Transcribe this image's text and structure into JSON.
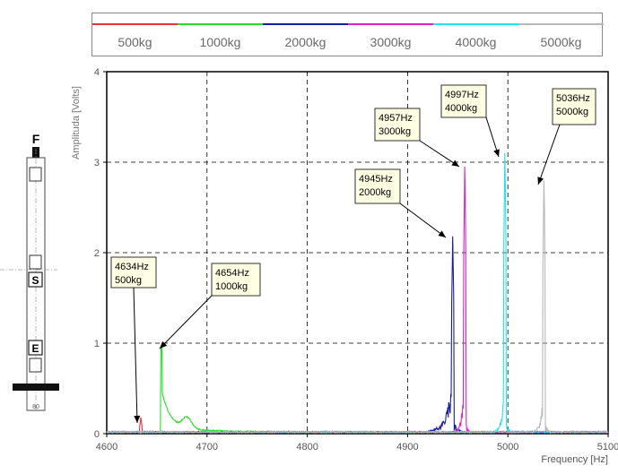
{
  "legend": [
    {
      "label": "500kg",
      "color": "#e8323c"
    },
    {
      "label": "1000kg",
      "color": "#22e022"
    },
    {
      "label": "2000kg",
      "color": "#1a1aa8"
    },
    {
      "label": "3000kg",
      "color": "#e020c8"
    },
    {
      "label": "4000kg",
      "color": "#22e4f0"
    },
    {
      "label": "5000kg",
      "color": "#b8b8b8"
    }
  ],
  "diagram": {
    "force_label": "F",
    "label_s": "S",
    "label_e": "E",
    "dimension": "80"
  },
  "chart_data": {
    "type": "line",
    "xlabel": "Frequency [Hz]",
    "ylabel": "Amplituda [Volts]",
    "xlim": [
      4600,
      5100
    ],
    "ylim": [
      0,
      4
    ],
    "x_ticks": [
      4600,
      4700,
      4800,
      4900,
      5000,
      5100
    ],
    "y_ticks": [
      0,
      1,
      2,
      3,
      4
    ],
    "grid": true,
    "legend_position": "top",
    "series": [
      {
        "name": "500kg",
        "color": "#e8323c",
        "peak_hz": 4634,
        "peak_amplitude": 0.18
      },
      {
        "name": "1000kg",
        "color": "#22e022",
        "peak_hz": 4654,
        "peak_amplitude": 0.95
      },
      {
        "name": "2000kg",
        "color": "#1a1aa8",
        "peak_hz": 4945,
        "peak_amplitude": 2.18
      },
      {
        "name": "3000kg",
        "color": "#e020c8",
        "peak_hz": 4957,
        "peak_amplitude": 2.95
      },
      {
        "name": "4000kg",
        "color": "#22e4f0",
        "peak_hz": 4997,
        "peak_amplitude": 3.1
      },
      {
        "name": "5000kg",
        "color": "#b8b8b8",
        "peak_hz": 5036,
        "peak_amplitude": 2.8
      }
    ],
    "annotations": [
      {
        "line1": "4634Hz",
        "line2": "500kg",
        "x": 4634,
        "y": 0.12
      },
      {
        "line1": "4654Hz",
        "line2": "1000kg",
        "x": 4654,
        "y": 0.93
      },
      {
        "line1": "4945Hz",
        "line2": "2000kg",
        "x": 4945,
        "y": 2.18
      },
      {
        "line1": "4957Hz",
        "line2": "3000kg",
        "x": 4957,
        "y": 2.95
      },
      {
        "line1": "4997Hz",
        "line2": "4000kg",
        "x": 4997,
        "y": 3.08
      },
      {
        "line1": "5036Hz",
        "line2": "5000kg",
        "x": 5036,
        "y": 2.78
      }
    ]
  }
}
